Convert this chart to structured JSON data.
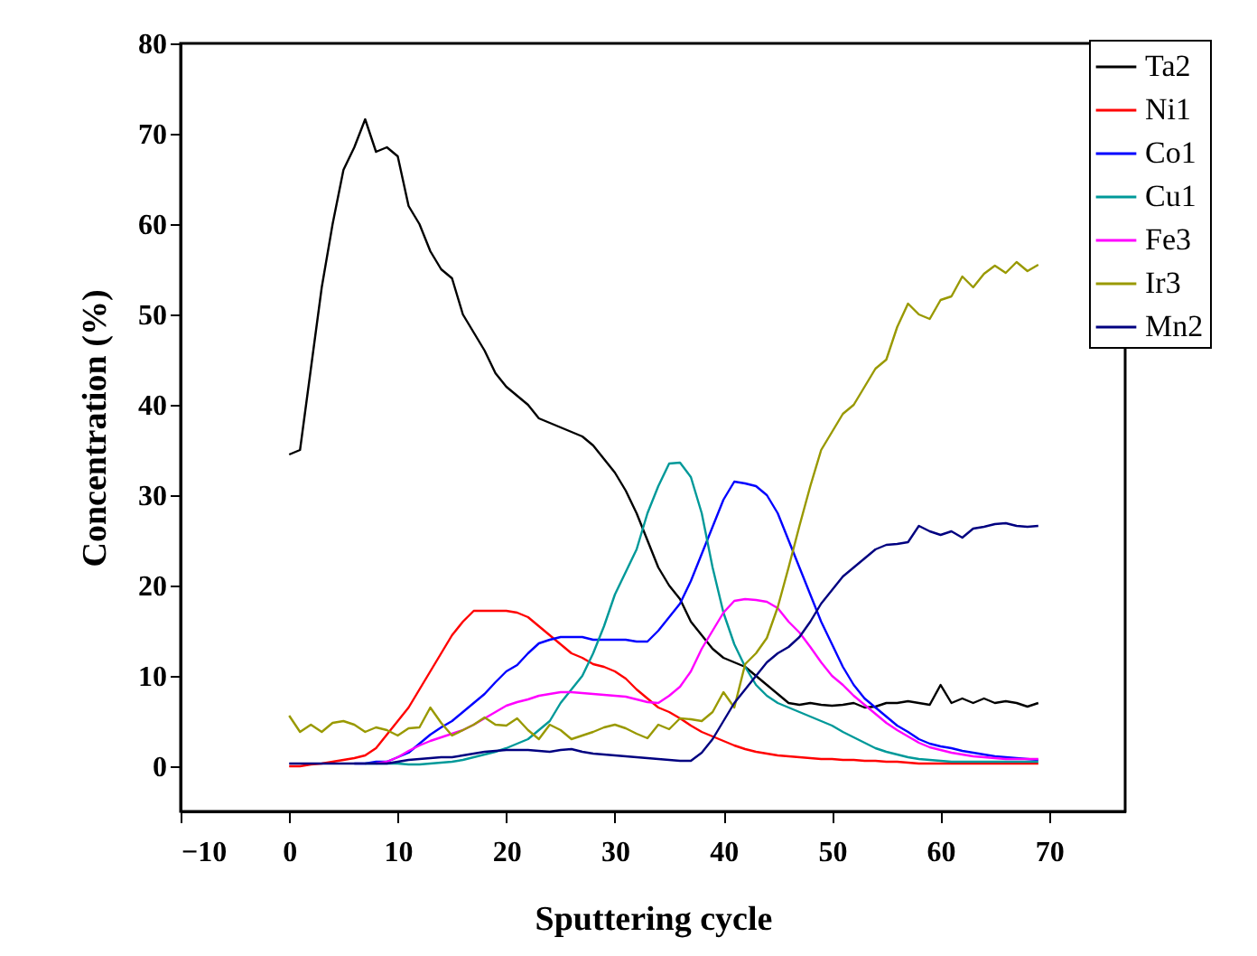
{
  "chart_data": {
    "type": "line",
    "xlabel": "Sputtering cycle",
    "ylabel": "Concentration (%)",
    "xlim": [
      -10,
      77
    ],
    "ylim": [
      -5,
      80
    ],
    "xticks": [
      -10,
      0,
      10,
      20,
      30,
      40,
      50,
      60,
      70
    ],
    "yticks": [
      0,
      10,
      20,
      30,
      40,
      50,
      60,
      70,
      80
    ],
    "legend": "top right",
    "line_style": "solid",
    "x": [
      0,
      1,
      2,
      3,
      4,
      5,
      6,
      7,
      8,
      9,
      10,
      11,
      12,
      13,
      14,
      15,
      16,
      17,
      18,
      19,
      20,
      21,
      22,
      23,
      24,
      25,
      26,
      27,
      28,
      29,
      30,
      31,
      32,
      33,
      34,
      35,
      36,
      37,
      38,
      39,
      40,
      41,
      42,
      43,
      44,
      45,
      46,
      47,
      48,
      49,
      50,
      51,
      52,
      53,
      54,
      55,
      56,
      57,
      58,
      59,
      60,
      61,
      62,
      63,
      64,
      65,
      66,
      67,
      68,
      69
    ],
    "series": [
      {
        "name": "Ta2",
        "color": "#000000",
        "values": [
          34.5,
          35,
          44,
          53,
          60,
          66,
          68.5,
          71.6,
          68,
          68.5,
          67.5,
          62,
          60,
          57,
          55,
          54,
          50,
          48,
          46,
          43.5,
          42,
          41,
          40,
          38.5,
          38,
          37.5,
          37,
          36.5,
          35.5,
          34,
          32.5,
          30.5,
          28,
          25,
          22,
          20,
          18.5,
          16,
          14.5,
          13,
          12,
          11.5,
          11,
          10,
          9,
          8,
          7,
          6.8,
          7,
          6.8,
          6.7,
          6.8,
          7,
          6.5,
          6.6,
          7,
          7,
          7.2,
          7,
          6.8,
          9,
          7,
          7.5,
          7,
          7.5,
          7,
          7.2,
          7,
          6.6,
          7
        ]
      },
      {
        "name": "Ni1",
        "color": "#ff0000",
        "values": [
          0,
          0,
          0.2,
          0.3,
          0.5,
          0.7,
          0.9,
          1.2,
          2,
          3.5,
          5,
          6.5,
          8.5,
          10.5,
          12.5,
          14.5,
          16,
          17.2,
          17.2,
          17.2,
          17.2,
          17,
          16.5,
          15.5,
          14.5,
          13.5,
          12.5,
          12,
          11.3,
          11,
          10.5,
          9.7,
          8.5,
          7.5,
          6.5,
          6,
          5.3,
          4.5,
          3.8,
          3.3,
          2.8,
          2.3,
          1.9,
          1.6,
          1.4,
          1.2,
          1.1,
          1,
          0.9,
          0.8,
          0.8,
          0.7,
          0.7,
          0.6,
          0.6,
          0.5,
          0.5,
          0.4,
          0.3,
          0.3,
          0.3,
          0.3,
          0.3,
          0.3,
          0.3,
          0.3,
          0.3,
          0.3,
          0.3,
          0.3
        ]
      },
      {
        "name": "Co1",
        "color": "#0000ff",
        "values": [
          null,
          null,
          null,
          null,
          null,
          null,
          0.3,
          0.3,
          0.5,
          0.5,
          1,
          1.5,
          2.5,
          3.5,
          4.3,
          5,
          6,
          7,
          8,
          9.3,
          10.5,
          11.2,
          12.5,
          13.6,
          14,
          14.3,
          14.3,
          14.3,
          14,
          14,
          14,
          14,
          13.8,
          13.8,
          15,
          16.5,
          18,
          20.5,
          23.5,
          26.5,
          29.5,
          31.5,
          31.3,
          31,
          30,
          28,
          25,
          22,
          19,
          16,
          13.5,
          11,
          9,
          7.5,
          6.5,
          5.5,
          4.5,
          3.8,
          3,
          2.5,
          2.2,
          2,
          1.7,
          1.5,
          1.3,
          1.1,
          1,
          0.9,
          0.8,
          0.7
        ]
      },
      {
        "name": "Cu1",
        "color": "#009999",
        "values": [
          null,
          null,
          null,
          null,
          null,
          null,
          null,
          0.3,
          0.3,
          0.3,
          0.3,
          0.2,
          0.2,
          0.3,
          0.4,
          0.5,
          0.7,
          1,
          1.3,
          1.6,
          2,
          2.5,
          3,
          4,
          5,
          7,
          8.5,
          10,
          12.5,
          15.5,
          19,
          21.5,
          24,
          28,
          31,
          33.5,
          33.6,
          32,
          28,
          22,
          17,
          13.5,
          11,
          9,
          7.8,
          7,
          6.5,
          6,
          5.5,
          5,
          4.5,
          3.8,
          3.2,
          2.6,
          2,
          1.6,
          1.3,
          1,
          0.8,
          0.7,
          0.6,
          0.5,
          0.5,
          0.5,
          0.5,
          0.5,
          0.5,
          0.5,
          0.5,
          0.5
        ]
      },
      {
        "name": "Fe3",
        "color": "#ff00ff",
        "values": [
          null,
          null,
          null,
          null,
          null,
          null,
          null,
          null,
          0.3,
          0.5,
          1,
          1.7,
          2.3,
          2.8,
          3.2,
          3.6,
          4,
          4.6,
          5.3,
          6,
          6.7,
          7.1,
          7.4,
          7.8,
          8,
          8.2,
          8.2,
          8.1,
          8,
          7.9,
          7.8,
          7.7,
          7.4,
          7.1,
          7,
          7.8,
          8.8,
          10.5,
          13,
          15,
          17,
          18.3,
          18.5,
          18.4,
          18.2,
          17.5,
          16,
          14.8,
          13.2,
          11.5,
          10,
          9,
          7.8,
          6.8,
          5.8,
          4.8,
          4,
          3.3,
          2.6,
          2.1,
          1.8,
          1.5,
          1.3,
          1.1,
          1,
          0.9,
          0.8,
          0.8,
          0.8,
          0.8
        ]
      },
      {
        "name": "Ir3",
        "color": "#999900",
        "values": [
          5.6,
          3.8,
          4.6,
          3.8,
          4.8,
          5,
          4.6,
          3.8,
          4.3,
          4,
          3.4,
          4.2,
          4.3,
          6.5,
          4.8,
          3.4,
          4,
          4.6,
          5.4,
          4.6,
          4.5,
          5.3,
          4,
          3,
          4.6,
          4,
          3,
          3.4,
          3.8,
          4.3,
          4.6,
          4.2,
          3.6,
          3.1,
          4.6,
          4.1,
          5.3,
          5.2,
          5,
          6,
          8.2,
          6.5,
          11.3,
          12.5,
          14.2,
          17.6,
          22,
          26.6,
          31,
          35,
          37,
          39,
          40,
          42,
          44,
          45,
          48.6,
          51.2,
          50,
          49.5,
          51.6,
          52,
          54.2,
          53,
          54.5,
          55.4,
          54.6,
          55.8,
          54.8,
          55.5
        ]
      },
      {
        "name": "Mn2",
        "color": "#000080",
        "values": [
          0.3,
          0.3,
          0.3,
          0.3,
          0.3,
          0.3,
          0.3,
          0.3,
          0.3,
          0.3,
          0.5,
          0.7,
          0.8,
          0.9,
          1,
          1,
          1.2,
          1.4,
          1.6,
          1.7,
          1.8,
          1.8,
          1.8,
          1.7,
          1.6,
          1.8,
          1.9,
          1.6,
          1.4,
          1.3,
          1.2,
          1.1,
          1,
          0.9,
          0.8,
          0.7,
          0.6,
          0.6,
          1.5,
          3,
          5,
          7,
          8.5,
          10,
          11.5,
          12.5,
          13.2,
          14.3,
          16,
          18,
          19.5,
          21,
          22,
          23,
          24,
          24.5,
          24.6,
          24.8,
          26.6,
          26,
          25.6,
          26,
          25.3,
          26.3,
          26.5,
          26.8,
          26.9,
          26.6,
          26.5,
          26.6
        ]
      }
    ]
  }
}
